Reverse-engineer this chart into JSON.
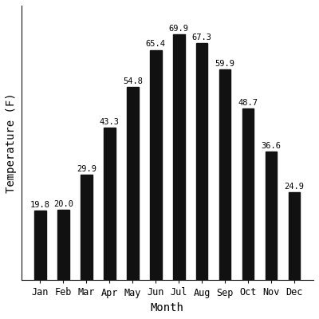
{
  "months": [
    "Jan",
    "Feb",
    "Mar",
    "Apr",
    "May",
    "Jun",
    "Jul",
    "Aug",
    "Sep",
    "Oct",
    "Nov",
    "Dec"
  ],
  "temperatures": [
    19.8,
    20.0,
    29.9,
    43.3,
    54.8,
    65.4,
    69.9,
    67.3,
    59.9,
    48.7,
    36.6,
    24.9
  ],
  "bar_color": "#111111",
  "xlabel": "Month",
  "ylabel": "Temperature (F)",
  "ylim": [
    0,
    78
  ],
  "label_fontsize": 10,
  "tick_fontsize": 8.5,
  "bar_label_fontsize": 7.5,
  "background_color": "#ffffff"
}
